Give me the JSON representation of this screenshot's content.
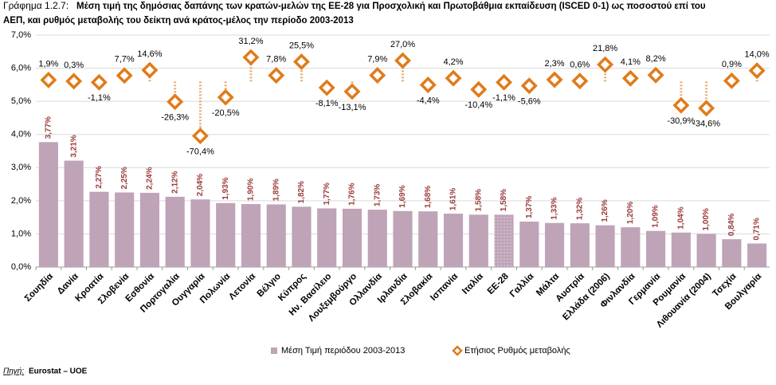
{
  "chart_data": {
    "type": "bar",
    "label": "Γράφημα 1.2.7:",
    "title": [
      "Μέση τιμή της δημόσιας δαπάνης των κρατών-μελών της ΕΕ-28 για Προσχολική και Πρωτοβάθμια εκπαίδευση (ISCED 0-1) ως ποσοστού επί του",
      "ΑΕΠ, και ρυθμός μεταβολής του δείκτη ανά κράτος-μέλος την περίοδο 2003-2013"
    ],
    "categories": [
      "Σουηδία",
      "Δανία",
      "Κροατία",
      "Σλοβενία",
      "Εσθονία",
      "Πορτογαλία",
      "Ουγγαρία",
      "Πολωνία",
      "Λετονία",
      "Βέλγιο",
      "Κύπρος",
      "Ην. Βασίλειο",
      "Λουξεμβούργο",
      "Ολλανδία",
      "Ιρλανδία",
      "Σλοβακία",
      "Ισπανία",
      "Ιταλία",
      "ΕΕ-28",
      "Γαλλία",
      "Μάλτα",
      "Αυστρία",
      "Ελλάδα (2006)",
      "Φινλανδία",
      "Γερμανία",
      "Ρουμανία",
      "Λιθουανία (2004)",
      "Τσεχία",
      "Βουλγαρία"
    ],
    "highlight_index": 18,
    "series": [
      {
        "name": "Μέση Τιμή περιόδου 2003-2013",
        "type": "bar",
        "color": "#bfa3b7",
        "values": [
          3.77,
          3.21,
          2.27,
          2.25,
          2.24,
          2.12,
          2.04,
          1.93,
          1.9,
          1.89,
          1.82,
          1.77,
          1.76,
          1.73,
          1.69,
          1.68,
          1.61,
          1.58,
          1.58,
          1.37,
          1.33,
          1.32,
          1.26,
          1.2,
          1.09,
          1.04,
          1.0,
          0.84,
          0.71
        ],
        "value_labels": [
          "3,77%",
          "3,21%",
          "2,27%",
          "2,25%",
          "2,24%",
          "2,12%",
          "2,04%",
          "1,93%",
          "1,90%",
          "1,89%",
          "1,82%",
          "1,77%",
          "1,76%",
          "1,73%",
          "1,69%",
          "1,68%",
          "1,61%",
          "1,58%",
          "1,58%",
          "1,37%",
          "1,33%",
          "1,32%",
          "1,26%",
          "1,20%",
          "1,09%",
          "1,04%",
          "1,00%",
          "0,84%",
          "0,71%"
        ]
      },
      {
        "name": "Ετήσιος Ρυθμός μεταβολής",
        "type": "scatter",
        "axis": "y2",
        "color": "#e07b1a",
        "values": [
          1.9,
          0.3,
          -1.1,
          7.7,
          14.6,
          -26.3,
          -70.4,
          -20.5,
          31.2,
          7.8,
          25.5,
          -8.1,
          -13.1,
          7.9,
          27.0,
          -4.4,
          4.2,
          -10.4,
          -1.1,
          -5.6,
          2.3,
          0.6,
          21.8,
          4.1,
          8.2,
          -30.9,
          -34.6,
          0.9,
          14.0
        ],
        "value_labels": [
          "1,9%",
          "0,3%",
          "-1,1%",
          "7,7%",
          "14,6%",
          "-26,3%",
          "-70,4%",
          "-20,5%",
          "31,2%",
          "7,8%",
          "25,5%",
          "-8,1%",
          "-13,1%",
          "7,9%",
          "27,0%",
          "-4,4%",
          "4,2%",
          "-10,4%",
          "-1,1%",
          "-5,6%",
          "2,3%",
          "0,6%",
          "21,8%",
          "4,1%",
          "8,2%",
          "-30,9%",
          "-34,6%",
          "0,9%",
          "14,0%"
        ]
      }
    ],
    "ylim": [
      0,
      7
    ],
    "yticks": [
      {
        "value": 0,
        "label": "0,0%"
      },
      {
        "value": 1,
        "label": "1,0%"
      },
      {
        "value": 2,
        "label": "2,0%"
      },
      {
        "value": 3,
        "label": "3,0%"
      },
      {
        "value": 4,
        "label": "4,0%"
      },
      {
        "value": 5,
        "label": "5,0%"
      },
      {
        "value": 6,
        "label": "6,0%"
      },
      {
        "value": 7,
        "label": "7,0%"
      }
    ],
    "y2lim": [
      -240,
      60
    ],
    "grid": true,
    "legend": "bottom",
    "source_label": "Πηγή:",
    "source": "Eurostat – UOE"
  }
}
